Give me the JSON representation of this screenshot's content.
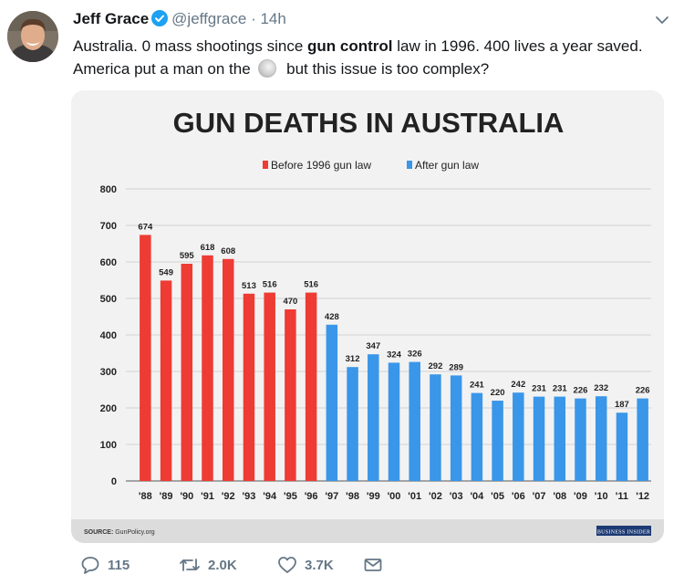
{
  "tweet": {
    "name": "Jeff Grace",
    "handle": "@jeffgrace",
    "separator": "·",
    "time": "14h",
    "text_part1": "Australia. 0 mass shootings since ",
    "text_bold": "gun control",
    "text_part2": " law in 1996. 400 lives a year saved. America put a man on the ",
    "text_part3": " but this issue is too complex?",
    "emoji_icon": "moon-icon"
  },
  "actions": {
    "replies": "115",
    "retweets": "2.0K",
    "likes": "3.7K"
  },
  "colors": {
    "before": "#ee3b33",
    "after": "#3a96e8",
    "verified": "#1da1f2"
  },
  "chart_data": {
    "type": "bar",
    "title": "GUN DEATHS IN AUSTRALIA",
    "categories": [
      "'88",
      "'89",
      "'90",
      "'91",
      "'92",
      "'93",
      "'94",
      "'95",
      "'96",
      "'97",
      "'98",
      "'99",
      "'00",
      "'01",
      "'02",
      "'03",
      "'04",
      "'05",
      "'06",
      "'07",
      "'08",
      "'09",
      "'10",
      "'11",
      "'12"
    ],
    "values": [
      674,
      549,
      595,
      618,
      608,
      513,
      516,
      470,
      516,
      428,
      312,
      347,
      324,
      326,
      292,
      289,
      241,
      220,
      242,
      231,
      231,
      226,
      232,
      187,
      226
    ],
    "series": [
      {
        "name": "Before 1996 gun law",
        "color": "#ee3b33",
        "range": [
          "'88",
          "'96"
        ]
      },
      {
        "name": "After gun law",
        "color": "#3a96e8",
        "range": [
          "'97",
          "'12"
        ]
      }
    ],
    "before_count": 9,
    "yticks": [
      0,
      100,
      200,
      300,
      400,
      500,
      600,
      700,
      800
    ],
    "ylim": [
      0,
      800
    ],
    "grid": true,
    "legend": "top-center",
    "source_label": "SOURCE:",
    "source": "GunPolicy.org",
    "publisher": "BUSINESS INSIDER"
  }
}
